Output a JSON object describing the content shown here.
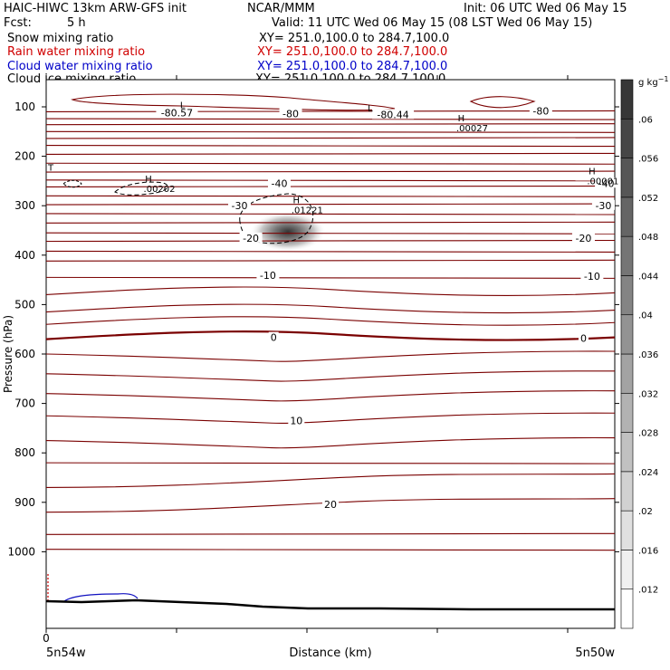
{
  "header": {
    "model": "HAIC-HIWC 13km ARW-GFS init",
    "org": "NCAR/MMM",
    "init": "Init: 06 UTC Wed 06 May 15",
    "fcst_label": "Fcst:",
    "fcst_value": "5 h",
    "valid": "Valid: 11 UTC Wed 06 May 15 (08 LST Wed 06 May 15)",
    "fields": [
      {
        "name": "Snow mixing ratio",
        "xy": "XY= 251.0,100.0 to 284.7,100.0",
        "color": "#000000"
      },
      {
        "name": "Rain water mixing ratio",
        "xy": "XY= 251.0,100.0 to 284.7,100.0",
        "color": "#d00000"
      },
      {
        "name": "Cloud water mixing ratio",
        "xy": "XY= 251.0,100.0 to 284.7,100.0",
        "color": "#0000c8"
      },
      {
        "name": "Cloud ice mixing ratio",
        "xy": "XY= 251.0,100.0 to 284.7,100.0",
        "color": "#000000"
      }
    ]
  },
  "chart_data": {
    "type": "heatmap",
    "xlabel": "Distance (km)",
    "ylabel": "Pressure (hPa)",
    "x_ticks": [
      "0"
    ],
    "x_end_labels": {
      "left": "5n54w",
      "right": "5n50w"
    },
    "y_ticks": [
      100,
      200,
      300,
      400,
      500,
      600,
      700,
      800,
      900,
      1000
    ],
    "colorbar": {
      "unit": "g kg",
      "unit_exp": "−1",
      "levels": [
        0.012,
        0.016,
        0.02,
        0.024,
        0.028,
        0.032,
        0.036,
        0.04,
        0.044,
        0.048,
        0.052,
        0.056,
        0.06
      ],
      "labels": [
        ".012",
        ".016",
        ".02",
        ".024",
        ".028",
        ".032",
        ".036",
        ".04",
        ".044",
        ".048",
        ".052",
        ".056",
        ".06"
      ]
    },
    "contour_labels": [
      {
        "text": "-80.57",
        "x": 0.23,
        "p": 116
      },
      {
        "text": "-80",
        "x": 0.43,
        "p": 117
      },
      {
        "text": "-80.44",
        "x": 0.61,
        "p": 119
      },
      {
        "text": "-80",
        "x": 0.87,
        "p": 112
      },
      {
        "text": "-40",
        "x": 0.41,
        "p": 258
      },
      {
        "text": "-40",
        "x": 0.985,
        "p": 258
      },
      {
        "text": "-30",
        "x": 0.34,
        "p": 303
      },
      {
        "text": "-30",
        "x": 0.98,
        "p": 303
      },
      {
        "text": "-20",
        "x": 0.36,
        "p": 369
      },
      {
        "text": "-20",
        "x": 0.945,
        "p": 369
      },
      {
        "text": "-10",
        "x": 0.39,
        "p": 444
      },
      {
        "text": "-10",
        "x": 0.96,
        "p": 446
      },
      {
        "text": "0",
        "x": 0.4,
        "p": 570
      },
      {
        "text": "0",
        "x": 0.945,
        "p": 572
      },
      {
        "text": "10",
        "x": 0.44,
        "p": 738
      },
      {
        "text": "20",
        "x": 0.5,
        "p": 908
      }
    ],
    "extrema": [
      {
        "type": "L",
        "x": 0.24,
        "p": 103,
        "value": ""
      },
      {
        "type": "L",
        "x": 0.57,
        "p": 109,
        "value": ""
      },
      {
        "type": "H",
        "x": 0.73,
        "p": 129,
        "value": ".00027"
      },
      {
        "type": "H",
        "x": 0.18,
        "p": 252,
        "value": ".00202"
      },
      {
        "type": "H",
        "x": 0.44,
        "p": 295,
        "value": ".01221"
      },
      {
        "type": "H",
        "x": 0.96,
        "p": 236,
        "value": ".00001"
      },
      {
        "type": "T",
        "x": 0.008,
        "p": 229,
        "value": ""
      }
    ],
    "max_value": 0.01221,
    "max_location": {
      "x": 0.46,
      "p": 310
    }
  }
}
